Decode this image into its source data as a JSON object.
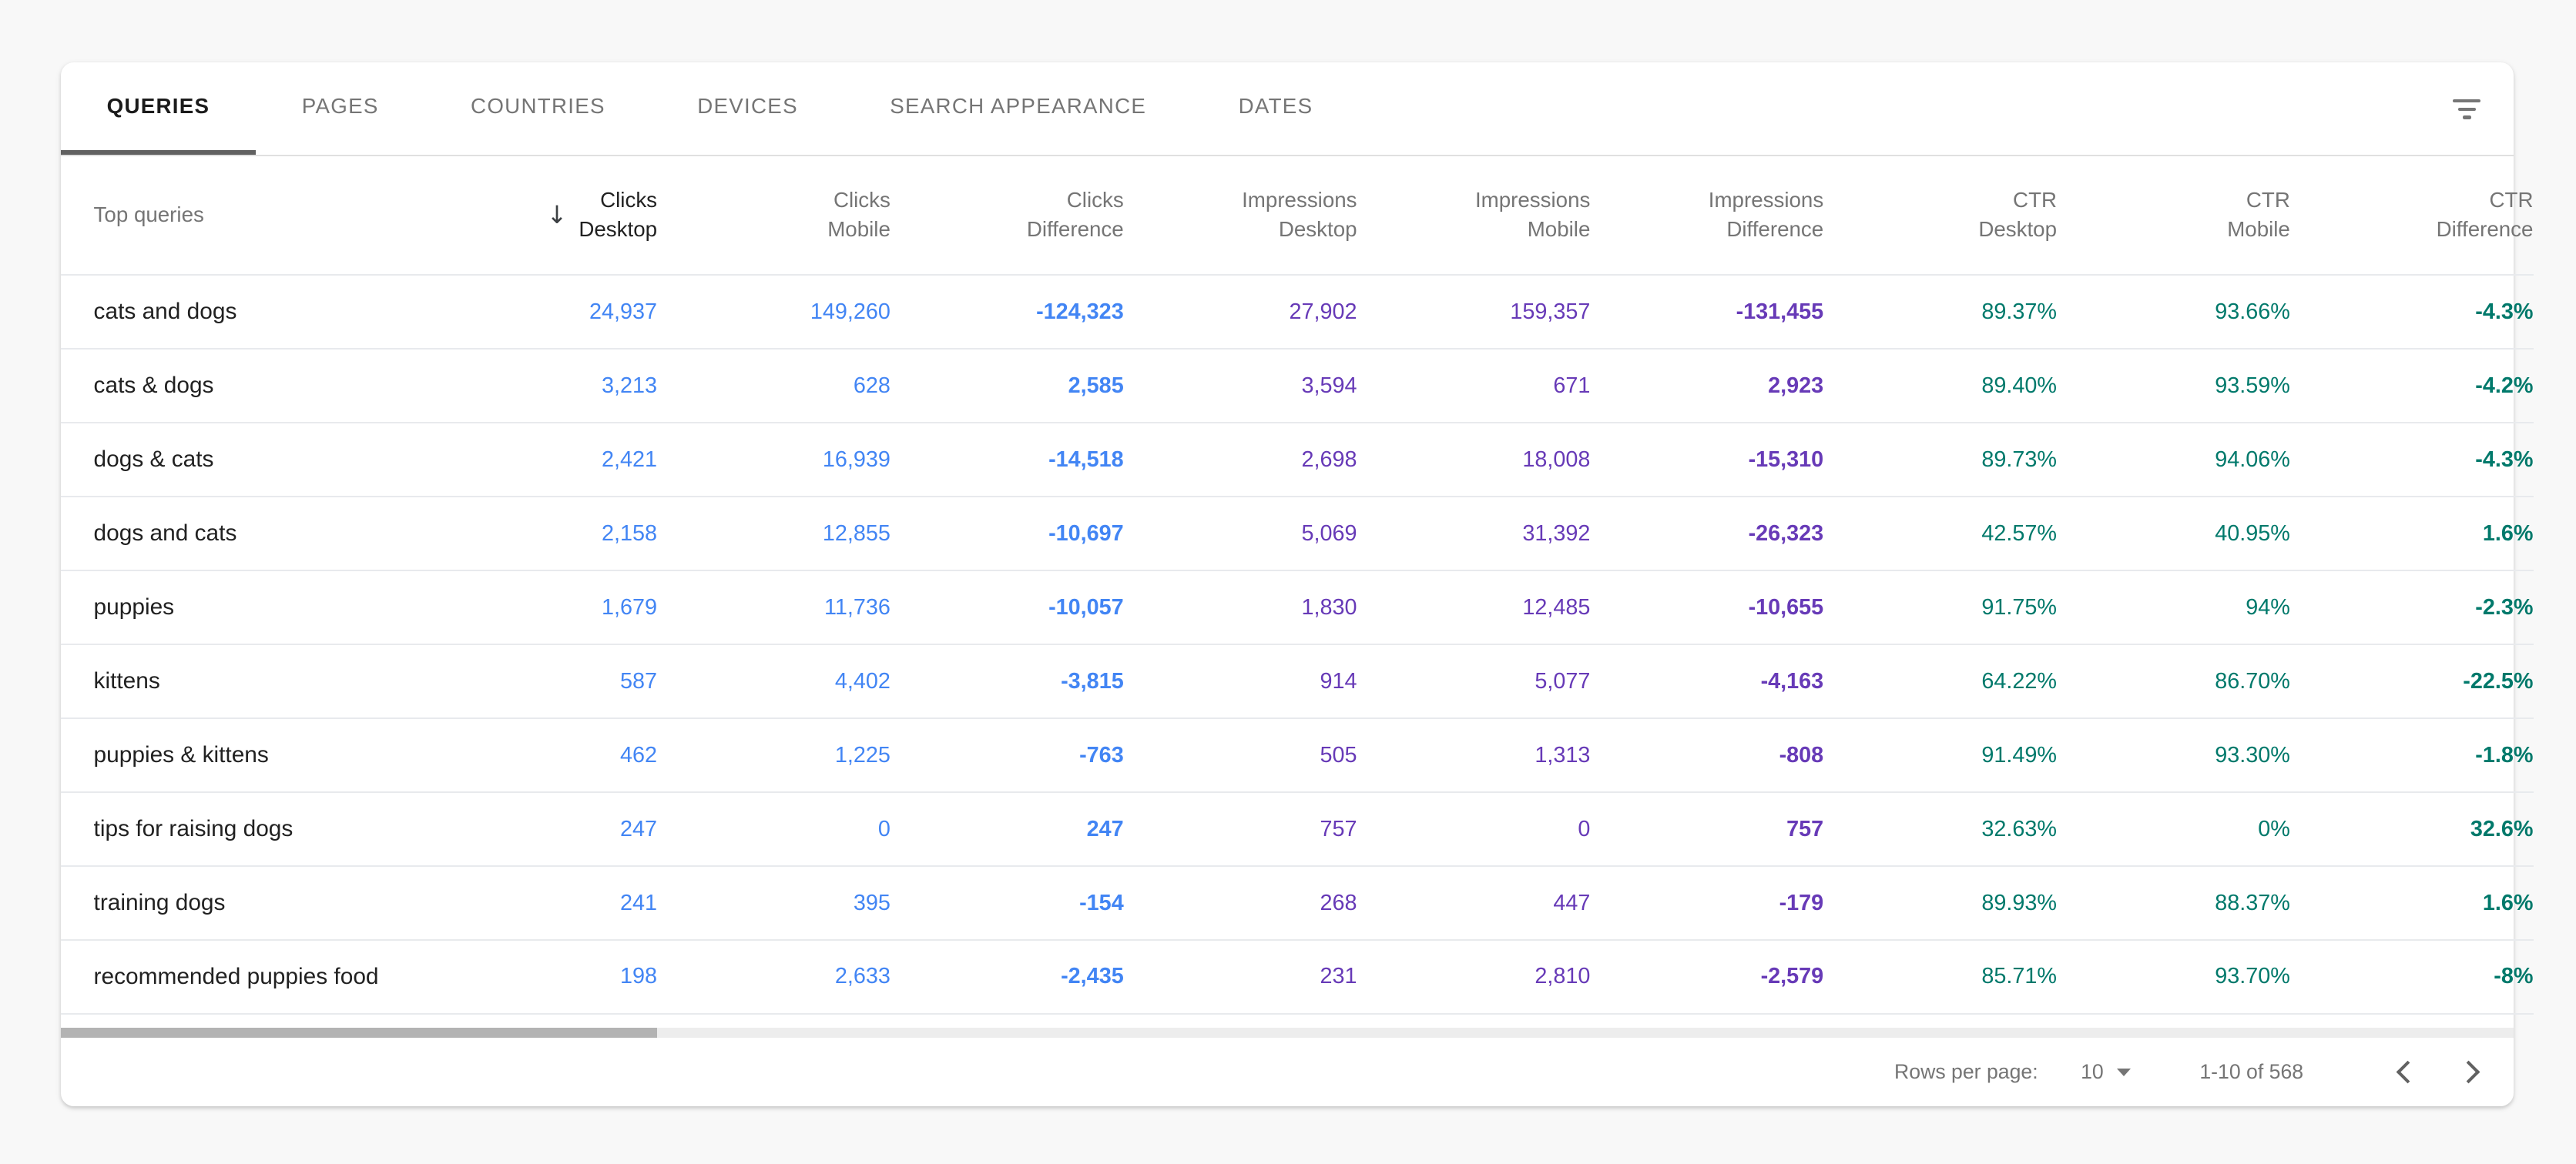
{
  "tabs": [
    {
      "label": "QUERIES",
      "active": true
    },
    {
      "label": "PAGES",
      "active": false
    },
    {
      "label": "COUNTRIES",
      "active": false
    },
    {
      "label": "DEVICES",
      "active": false
    },
    {
      "label": "SEARCH APPEARANCE",
      "active": false
    },
    {
      "label": "DATES",
      "active": false
    }
  ],
  "icons": {
    "filter": "filter-list-icon",
    "sort_desc": "arrow-down-icon",
    "rows_per_page_dropdown": "arrow-drop-down-icon",
    "prev_page": "chevron-left-icon",
    "next_page": "chevron-right-icon"
  },
  "colors": {
    "clicks": "#4285f4",
    "impressions": "#673ab7",
    "ctr": "#00796b",
    "tab_indicator": "#616161",
    "text_primary": "#212121",
    "text_secondary": "#757575"
  },
  "table": {
    "row_label_header": "Top queries",
    "columns": [
      {
        "line1": "Clicks",
        "line2": "Desktop",
        "key": "clicks_desktop",
        "group": "clicks",
        "sorted": true,
        "diff": false
      },
      {
        "line1": "Clicks",
        "line2": "Mobile",
        "key": "clicks_mobile",
        "group": "clicks",
        "sorted": false,
        "diff": false
      },
      {
        "line1": "Clicks",
        "line2": "Difference",
        "key": "clicks_diff",
        "group": "clicks",
        "sorted": false,
        "diff": true
      },
      {
        "line1": "Impressions",
        "line2": "Desktop",
        "key": "impressions_desktop",
        "group": "impressions",
        "sorted": false,
        "diff": false
      },
      {
        "line1": "Impressions",
        "line2": "Mobile",
        "key": "impressions_mobile",
        "group": "impressions",
        "sorted": false,
        "diff": false
      },
      {
        "line1": "Impressions",
        "line2": "Difference",
        "key": "impressions_diff",
        "group": "impressions",
        "sorted": false,
        "diff": true
      },
      {
        "line1": "CTR",
        "line2": "Desktop",
        "key": "ctr_desktop",
        "group": "ctr",
        "sorted": false,
        "diff": false
      },
      {
        "line1": "CTR",
        "line2": "Mobile",
        "key": "ctr_mobile",
        "group": "ctr",
        "sorted": false,
        "diff": false
      },
      {
        "line1": "CTR",
        "line2": "Difference",
        "key": "ctr_diff",
        "group": "ctr",
        "sorted": false,
        "diff": true
      }
    ],
    "rows": [
      {
        "query": "cats and dogs",
        "clicks_desktop": "24,937",
        "clicks_mobile": "149,260",
        "clicks_diff": "-124,323",
        "impressions_desktop": "27,902",
        "impressions_mobile": "159,357",
        "impressions_diff": "-131,455",
        "ctr_desktop": "89.37%",
        "ctr_mobile": "93.66%",
        "ctr_diff": "-4.3%"
      },
      {
        "query": "cats & dogs",
        "clicks_desktop": "3,213",
        "clicks_mobile": "628",
        "clicks_diff": "2,585",
        "impressions_desktop": "3,594",
        "impressions_mobile": "671",
        "impressions_diff": "2,923",
        "ctr_desktop": "89.40%",
        "ctr_mobile": "93.59%",
        "ctr_diff": "-4.2%"
      },
      {
        "query": "dogs & cats",
        "clicks_desktop": "2,421",
        "clicks_mobile": "16,939",
        "clicks_diff": "-14,518",
        "impressions_desktop": "2,698",
        "impressions_mobile": "18,008",
        "impressions_diff": "-15,310",
        "ctr_desktop": "89.73%",
        "ctr_mobile": "94.06%",
        "ctr_diff": "-4.3%"
      },
      {
        "query": "dogs and cats",
        "clicks_desktop": "2,158",
        "clicks_mobile": "12,855",
        "clicks_diff": "-10,697",
        "impressions_desktop": "5,069",
        "impressions_mobile": "31,392",
        "impressions_diff": "-26,323",
        "ctr_desktop": "42.57%",
        "ctr_mobile": "40.95%",
        "ctr_diff": "1.6%"
      },
      {
        "query": "puppies",
        "clicks_desktop": "1,679",
        "clicks_mobile": "11,736",
        "clicks_diff": "-10,057",
        "impressions_desktop": "1,830",
        "impressions_mobile": "12,485",
        "impressions_diff": "-10,655",
        "ctr_desktop": "91.75%",
        "ctr_mobile": "94%",
        "ctr_diff": "-2.3%"
      },
      {
        "query": "kittens",
        "clicks_desktop": "587",
        "clicks_mobile": "4,402",
        "clicks_diff": "-3,815",
        "impressions_desktop": "914",
        "impressions_mobile": "5,077",
        "impressions_diff": "-4,163",
        "ctr_desktop": "64.22%",
        "ctr_mobile": "86.70%",
        "ctr_diff": "-22.5%"
      },
      {
        "query": "puppies & kittens",
        "clicks_desktop": "462",
        "clicks_mobile": "1,225",
        "clicks_diff": "-763",
        "impressions_desktop": "505",
        "impressions_mobile": "1,313",
        "impressions_diff": "-808",
        "ctr_desktop": "91.49%",
        "ctr_mobile": "93.30%",
        "ctr_diff": "-1.8%"
      },
      {
        "query": "tips for raising dogs",
        "clicks_desktop": "247",
        "clicks_mobile": "0",
        "clicks_diff": "247",
        "impressions_desktop": "757",
        "impressions_mobile": "0",
        "impressions_diff": "757",
        "ctr_desktop": "32.63%",
        "ctr_mobile": "0%",
        "ctr_diff": "32.6%"
      },
      {
        "query": "training dogs",
        "clicks_desktop": "241",
        "clicks_mobile": "395",
        "clicks_diff": "-154",
        "impressions_desktop": "268",
        "impressions_mobile": "447",
        "impressions_diff": "-179",
        "ctr_desktop": "89.93%",
        "ctr_mobile": "88.37%",
        "ctr_diff": "1.6%"
      },
      {
        "query": "recommended puppies food",
        "clicks_desktop": "198",
        "clicks_mobile": "2,633",
        "clicks_diff": "-2,435",
        "impressions_desktop": "231",
        "impressions_mobile": "2,810",
        "impressions_diff": "-2,579",
        "ctr_desktop": "85.71%",
        "ctr_mobile": "93.70%",
        "ctr_diff": "-8%"
      }
    ]
  },
  "pagination": {
    "rows_per_page_label": "Rows per page:",
    "rows_per_page_value": "10",
    "range_label": "1-10 of 568"
  }
}
